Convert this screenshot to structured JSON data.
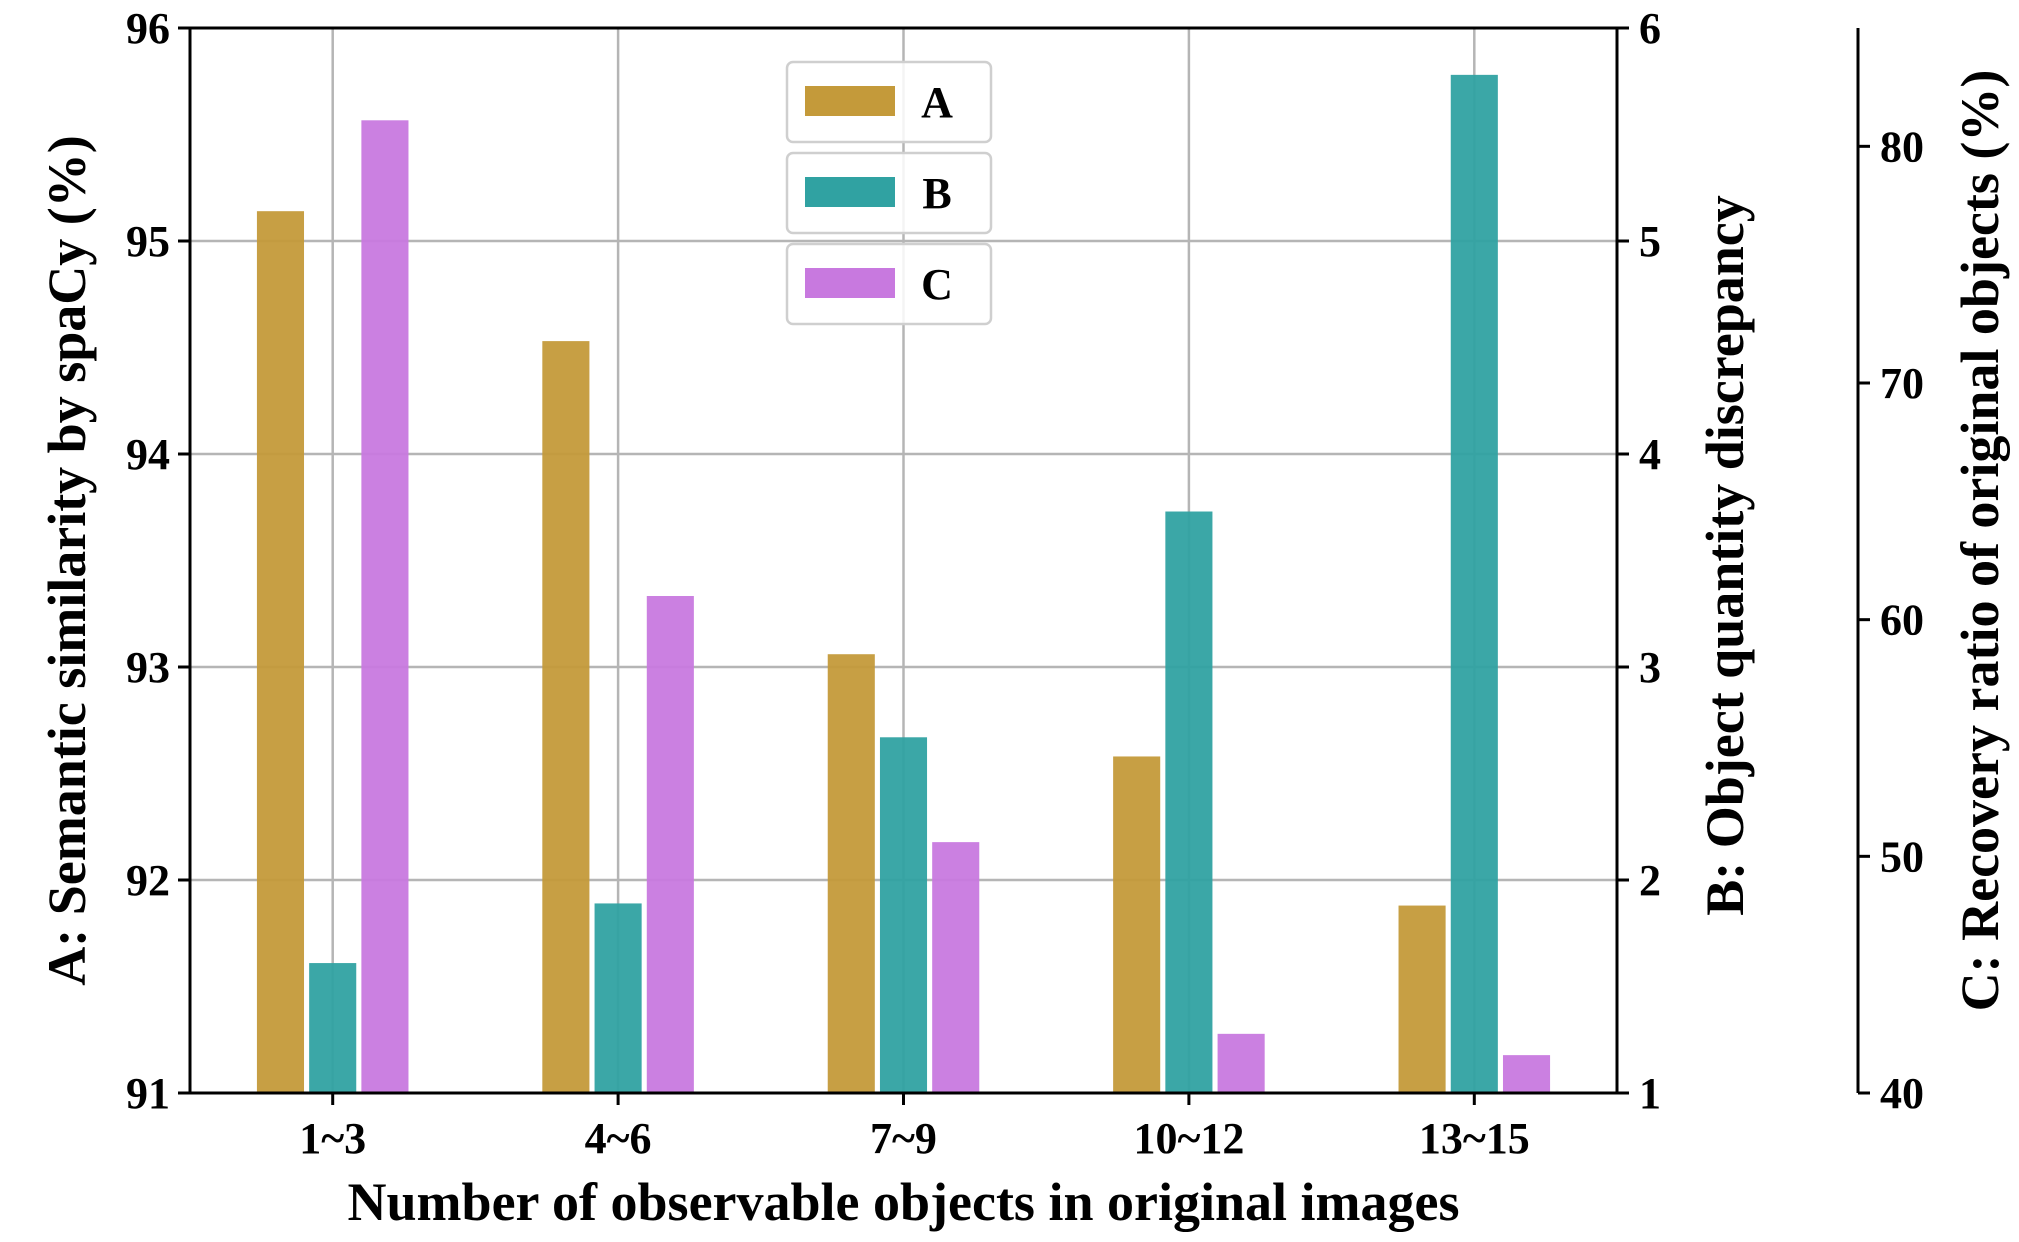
{
  "chart_data": {
    "type": "bar",
    "xlabel": "Number of observable objects in original images",
    "categories": [
      "1~3",
      "4~6",
      "7~9",
      "10~12",
      "13~15"
    ],
    "grid": true,
    "legend_position": "top-center",
    "axes": {
      "A": {
        "label": "A: Semantic similarity by spaCy (%)",
        "ylim": [
          91,
          96
        ],
        "ticks": [
          91,
          92,
          93,
          94,
          95,
          96
        ]
      },
      "B": {
        "label": "B: Object quantity discrepancy",
        "ylim": [
          1,
          6
        ],
        "ticks": [
          1,
          2,
          3,
          4,
          5,
          6
        ]
      },
      "C": {
        "label": "C: Recovery ratio of original objects (%)",
        "ylim": [
          40,
          85
        ],
        "ticks": [
          40,
          50,
          60,
          70,
          80
        ]
      }
    },
    "series": [
      {
        "name": "A",
        "axis": "A",
        "color": "#C49A3A",
        "values": [
          95.14,
          94.53,
          93.06,
          92.58,
          91.88
        ]
      },
      {
        "name": "B",
        "axis": "B",
        "color": "#30A2A2",
        "values": [
          1.61,
          1.89,
          2.67,
          3.73,
          5.78
        ]
      },
      {
        "name": "C",
        "axis": "C",
        "color": "#C879DF",
        "values": [
          81.1,
          61.0,
          50.6,
          42.5,
          41.6
        ]
      }
    ]
  }
}
